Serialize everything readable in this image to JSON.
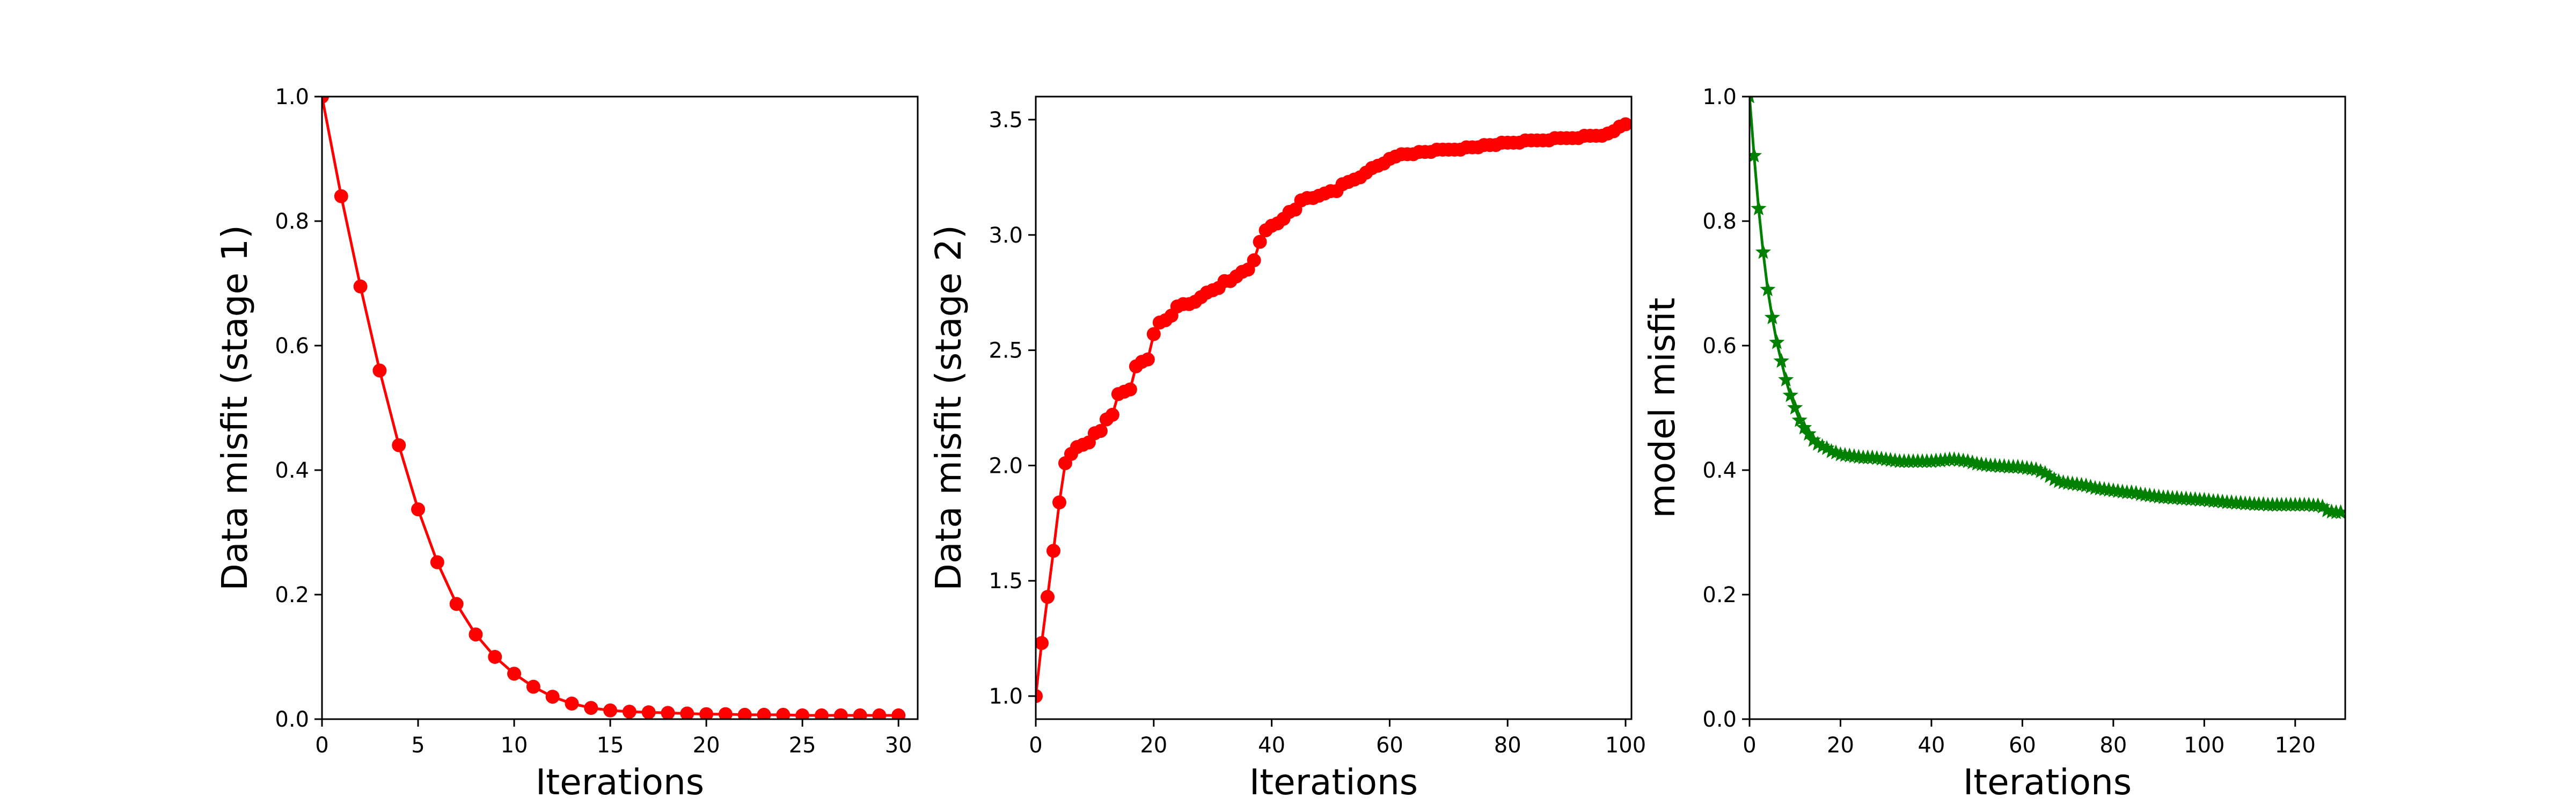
{
  "chart_data": [
    {
      "type": "line",
      "xlabel": "Iterations",
      "ylabel": "Data misfit (stage 1)",
      "xlim": [
        0,
        31
      ],
      "ylim": [
        0.0,
        1.0
      ],
      "xticks": [
        0,
        5,
        10,
        15,
        20,
        25,
        30
      ],
      "xtick_labels": [
        "0",
        "5",
        "10",
        "15",
        "20",
        "25",
        "30"
      ],
      "yticks": [
        0.0,
        0.2,
        0.4,
        0.6,
        0.8,
        1.0
      ],
      "ytick_labels": [
        "0.0",
        "0.2",
        "0.4",
        "0.6",
        "0.8",
        "1.0"
      ],
      "grid": false,
      "color": "#ff0000",
      "marker": "circle",
      "series": [
        {
          "x": [
            0,
            1,
            2,
            3,
            4,
            5,
            6,
            7,
            8,
            9,
            10,
            11,
            12,
            13,
            14,
            15,
            16,
            17,
            18,
            19,
            20,
            21,
            22,
            23,
            24,
            25,
            26,
            27,
            28,
            29,
            30
          ],
          "values": [
            1.0,
            0.84,
            0.695,
            0.56,
            0.44,
            0.337,
            0.252,
            0.185,
            0.136,
            0.1,
            0.073,
            0.052,
            0.036,
            0.025,
            0.018,
            0.014,
            0.012,
            0.011,
            0.01,
            0.009,
            0.008,
            0.008,
            0.007,
            0.007,
            0.007,
            0.006,
            0.006,
            0.006,
            0.006,
            0.006,
            0.006
          ]
        }
      ]
    },
    {
      "type": "line",
      "xlabel": "Iterations",
      "ylabel": "Data misfit (stage 2)",
      "xlim": [
        0,
        101
      ],
      "ylim": [
        0.9,
        3.6
      ],
      "xticks": [
        0,
        20,
        40,
        60,
        80,
        100
      ],
      "xtick_labels": [
        "0",
        "20",
        "40",
        "60",
        "80",
        "100"
      ],
      "yticks": [
        1.0,
        1.5,
        2.0,
        2.5,
        3.0,
        3.5
      ],
      "ytick_labels": [
        "1.0",
        "1.5",
        "2.0",
        "2.5",
        "3.0",
        "3.5"
      ],
      "grid": false,
      "color": "#ff0000",
      "marker": "circle",
      "series": [
        {
          "x": [
            0,
            1,
            2,
            3,
            4,
            5,
            6,
            7,
            8,
            9,
            10,
            11,
            12,
            13,
            14,
            15,
            16,
            17,
            18,
            19,
            20,
            21,
            22,
            23,
            24,
            25,
            26,
            27,
            28,
            29,
            30,
            31,
            32,
            33,
            34,
            35,
            36,
            37,
            38,
            39,
            40,
            41,
            42,
            43,
            44,
            45,
            46,
            47,
            48,
            49,
            50,
            51,
            52,
            53,
            54,
            55,
            56,
            57,
            58,
            59,
            60,
            61,
            62,
            63,
            64,
            65,
            66,
            67,
            68,
            69,
            70,
            71,
            72,
            73,
            74,
            75,
            76,
            77,
            78,
            79,
            80,
            81,
            82,
            83,
            84,
            85,
            86,
            87,
            88,
            89,
            90,
            91,
            92,
            93,
            94,
            95,
            96,
            97,
            98,
            99,
            100
          ],
          "values": [
            1.0,
            1.23,
            1.43,
            1.63,
            1.84,
            2.01,
            2.05,
            2.08,
            2.09,
            2.1,
            2.14,
            2.15,
            2.2,
            2.22,
            2.31,
            2.32,
            2.33,
            2.43,
            2.45,
            2.46,
            2.57,
            2.62,
            2.63,
            2.65,
            2.69,
            2.7,
            2.7,
            2.71,
            2.73,
            2.75,
            2.76,
            2.77,
            2.8,
            2.8,
            2.82,
            2.84,
            2.85,
            2.89,
            2.97,
            3.02,
            3.04,
            3.05,
            3.07,
            3.1,
            3.11,
            3.15,
            3.16,
            3.16,
            3.17,
            3.18,
            3.19,
            3.19,
            3.22,
            3.23,
            3.24,
            3.25,
            3.27,
            3.29,
            3.3,
            3.31,
            3.33,
            3.34,
            3.35,
            3.35,
            3.35,
            3.36,
            3.36,
            3.36,
            3.37,
            3.37,
            3.37,
            3.37,
            3.37,
            3.38,
            3.38,
            3.38,
            3.39,
            3.39,
            3.39,
            3.4,
            3.4,
            3.4,
            3.4,
            3.41,
            3.41,
            3.41,
            3.41,
            3.41,
            3.42,
            3.42,
            3.42,
            3.42,
            3.42,
            3.43,
            3.43,
            3.43,
            3.43,
            3.44,
            3.45,
            3.47,
            3.48
          ]
        }
      ]
    },
    {
      "type": "line",
      "xlabel": "Iterations",
      "ylabel": "model misfit",
      "xlim": [
        0,
        131
      ],
      "ylim": [
        0.0,
        1.0
      ],
      "xticks": [
        0,
        20,
        40,
        60,
        80,
        100,
        120
      ],
      "xtick_labels": [
        "0",
        "20",
        "40",
        "60",
        "80",
        "100",
        "120"
      ],
      "yticks": [
        0.0,
        0.2,
        0.4,
        0.6,
        0.8,
        1.0
      ],
      "ytick_labels": [
        "0.0",
        "0.2",
        "0.4",
        "0.6",
        "0.8",
        "1.0"
      ],
      "grid": false,
      "color": "#008000",
      "marker": "star",
      "series": [
        {
          "x": [
            0,
            1,
            2,
            3,
            4,
            5,
            6,
            7,
            8,
            9,
            10,
            11,
            12,
            13,
            14,
            15,
            16,
            17,
            18,
            19,
            20,
            21,
            22,
            23,
            24,
            25,
            26,
            27,
            28,
            29,
            30,
            31,
            32,
            33,
            34,
            35,
            36,
            37,
            38,
            39,
            40,
            41,
            42,
            43,
            44,
            45,
            46,
            47,
            48,
            49,
            50,
            51,
            52,
            53,
            54,
            55,
            56,
            57,
            58,
            59,
            60,
            61,
            62,
            63,
            64,
            65,
            66,
            67,
            68,
            69,
            70,
            71,
            72,
            73,
            74,
            75,
            76,
            77,
            78,
            79,
            80,
            81,
            82,
            83,
            84,
            85,
            86,
            87,
            88,
            89,
            90,
            91,
            92,
            93,
            94,
            95,
            96,
            97,
            98,
            99,
            100,
            101,
            102,
            103,
            104,
            105,
            106,
            107,
            108,
            109,
            110,
            111,
            112,
            113,
            114,
            115,
            116,
            117,
            118,
            119,
            120,
            121,
            122,
            123,
            124,
            125,
            126,
            127,
            128,
            129,
            130
          ],
          "values": [
            1.0,
            0.905,
            0.82,
            0.75,
            0.69,
            0.645,
            0.605,
            0.575,
            0.545,
            0.52,
            0.5,
            0.48,
            0.468,
            0.458,
            0.448,
            0.442,
            0.438,
            0.435,
            0.43,
            0.428,
            0.425,
            0.424,
            0.423,
            0.422,
            0.421,
            0.42,
            0.42,
            0.42,
            0.419,
            0.418,
            0.417,
            0.416,
            0.415,
            0.414,
            0.414,
            0.414,
            0.414,
            0.414,
            0.414,
            0.414,
            0.414,
            0.415,
            0.415,
            0.416,
            0.417,
            0.417,
            0.416,
            0.415,
            0.414,
            0.412,
            0.41,
            0.409,
            0.408,
            0.407,
            0.407,
            0.406,
            0.406,
            0.405,
            0.405,
            0.405,
            0.404,
            0.403,
            0.402,
            0.401,
            0.398,
            0.395,
            0.39,
            0.385,
            0.382,
            0.38,
            0.379,
            0.378,
            0.377,
            0.376,
            0.375,
            0.373,
            0.371,
            0.37,
            0.369,
            0.368,
            0.367,
            0.366,
            0.365,
            0.364,
            0.364,
            0.363,
            0.361,
            0.36,
            0.359,
            0.358,
            0.357,
            0.356,
            0.356,
            0.355,
            0.355,
            0.354,
            0.354,
            0.353,
            0.353,
            0.352,
            0.352,
            0.351,
            0.35,
            0.35,
            0.349,
            0.348,
            0.348,
            0.347,
            0.347,
            0.346,
            0.346,
            0.345,
            0.345,
            0.345,
            0.344,
            0.344,
            0.344,
            0.344,
            0.344,
            0.344,
            0.344,
            0.344,
            0.344,
            0.344,
            0.343,
            0.343,
            0.341,
            0.335,
            0.333,
            0.332,
            0.332
          ]
        }
      ]
    }
  ]
}
